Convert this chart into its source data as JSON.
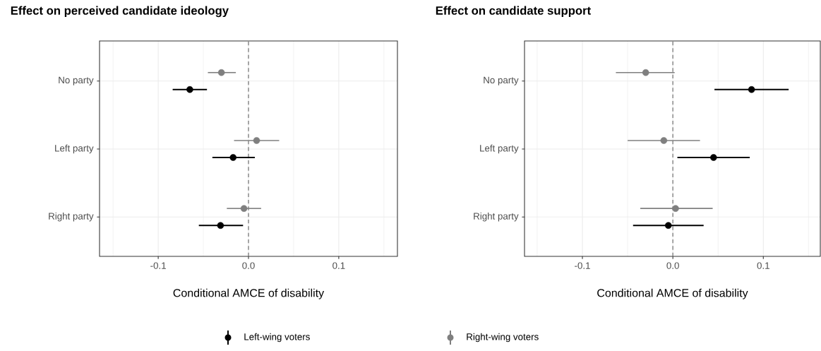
{
  "chart_data": [
    {
      "type": "scatter",
      "orientation": "horizontal",
      "title": "Effect on perceived candidate ideology",
      "xlabel": "Conditional AMCE of disability",
      "categories": [
        "No party",
        "Left party",
        "Right party"
      ],
      "series": [
        {
          "name": "Left-wing voters",
          "color": "#000000",
          "values": [
            -0.065,
            -0.017,
            -0.031
          ],
          "errors": [
            [
              -0.084,
              -0.046
            ],
            [
              -0.04,
              0.007
            ],
            [
              -0.055,
              -0.006
            ]
          ]
        },
        {
          "name": "Right-wing voters",
          "color": "#7f7f7f",
          "values": [
            -0.03,
            0.009,
            -0.005
          ],
          "errors": [
            [
              -0.045,
              -0.014
            ],
            [
              -0.016,
              0.034
            ],
            [
              -0.024,
              0.014
            ]
          ]
        }
      ],
      "xlim": [
        -0.165,
        0.165
      ],
      "xticks": [
        {
          "value": -0.1,
          "label": "-0.1"
        },
        {
          "value": 0,
          "label": "0.0"
        },
        {
          "value": 0.1,
          "label": "0.1"
        }
      ],
      "ref_lines": [
        {
          "axis": "x",
          "value": 0,
          "color": "#7f7f7f",
          "line_style": "dashed"
        }
      ],
      "grid": true,
      "marker": "circle",
      "legend": "bottom"
    },
    {
      "type": "scatter",
      "orientation": "horizontal",
      "title": "Effect on candidate support",
      "xlabel": "Conditional AMCE of disability",
      "categories": [
        "No party",
        "Left party",
        "Right party"
      ],
      "series": [
        {
          "name": "Left-wing voters",
          "color": "#000000",
          "values": [
            0.087,
            0.045,
            -0.005
          ],
          "errors": [
            [
              0.046,
              0.128
            ],
            [
              0.005,
              0.085
            ],
            [
              -0.044,
              0.034
            ]
          ]
        },
        {
          "name": "Right-wing voters",
          "color": "#7f7f7f",
          "values": [
            -0.03,
            -0.01,
            0.003
          ],
          "errors": [
            [
              -0.063,
              0.002
            ],
            [
              -0.05,
              0.03
            ],
            [
              -0.036,
              0.044
            ]
          ]
        }
      ],
      "xlim": [
        -0.164,
        0.163
      ],
      "xticks": [
        {
          "value": -0.1,
          "label": "-0.1"
        },
        {
          "value": 0,
          "label": "0.0"
        },
        {
          "value": 0.1,
          "label": "0.1"
        }
      ],
      "ref_lines": [
        {
          "axis": "x",
          "value": 0,
          "color": "#7f7f7f",
          "line_style": "dashed"
        }
      ],
      "grid": true,
      "marker": "circle"
    }
  ]
}
